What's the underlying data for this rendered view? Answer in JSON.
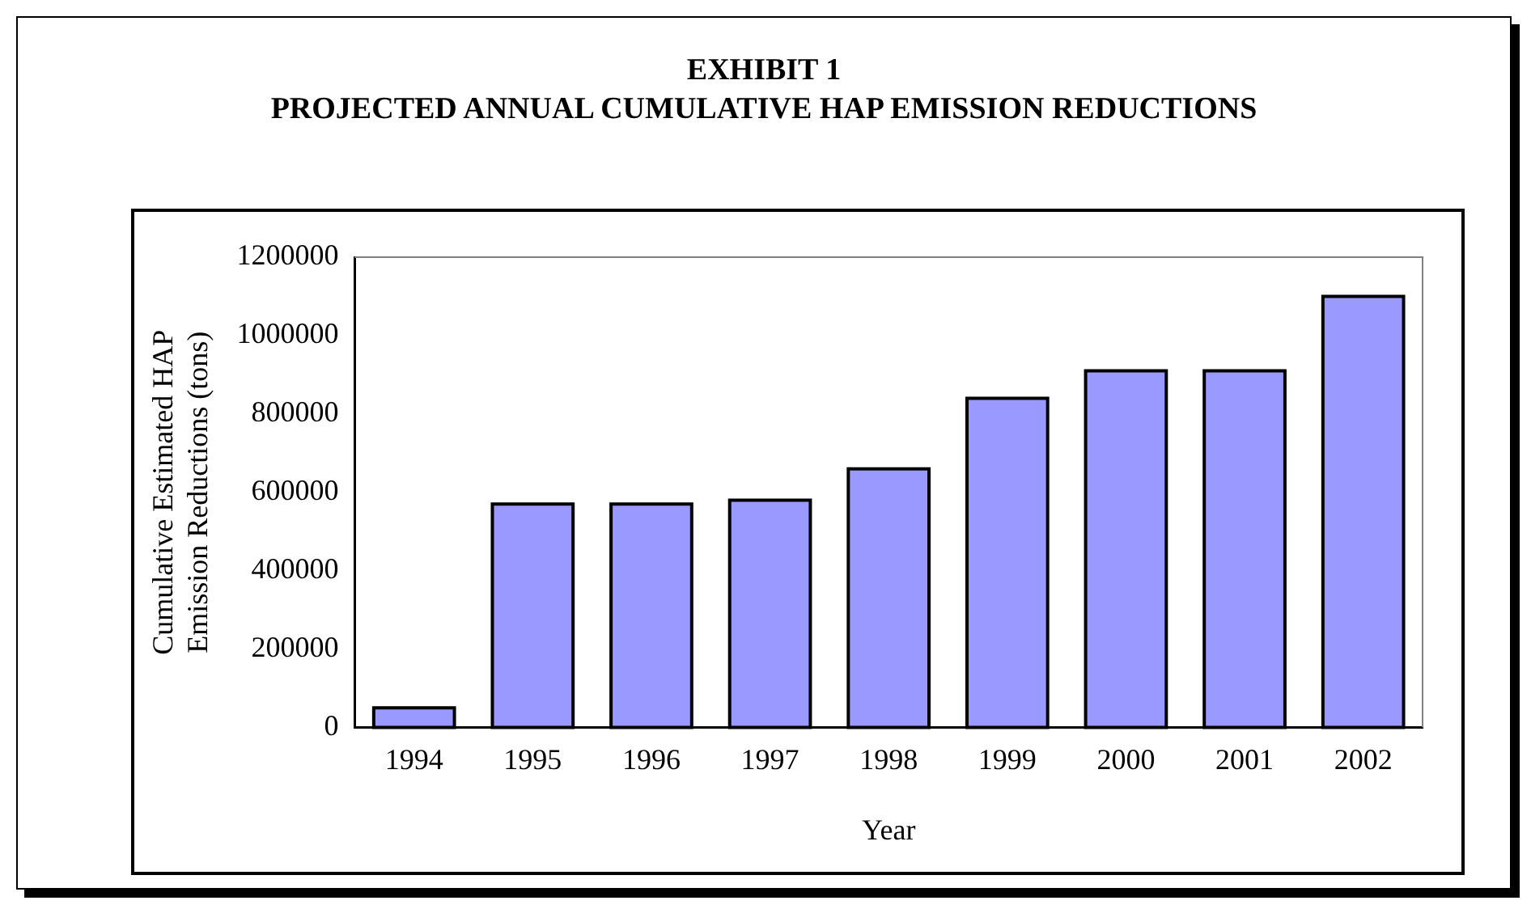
{
  "chart_data": {
    "type": "bar",
    "title": "EXHIBIT 1",
    "subtitle": "PROJECTED ANNUAL CUMULATIVE HAP EMISSION REDUCTIONS",
    "categories": [
      "1994",
      "1995",
      "1996",
      "1997",
      "1998",
      "1999",
      "2000",
      "2001",
      "2002"
    ],
    "values": [
      50000,
      570000,
      570000,
      580000,
      660000,
      840000,
      910000,
      910000,
      1100000
    ],
    "color": "#9999ff",
    "xlabel": "Year",
    "ylabel": "Cumulative Estimated HAP Emission Reductions (tons)",
    "ylim": [
      0,
      1200000
    ],
    "yticks": [
      0,
      200000,
      400000,
      600000,
      800000,
      1000000,
      1200000
    ],
    "grid": false,
    "legend": false
  }
}
